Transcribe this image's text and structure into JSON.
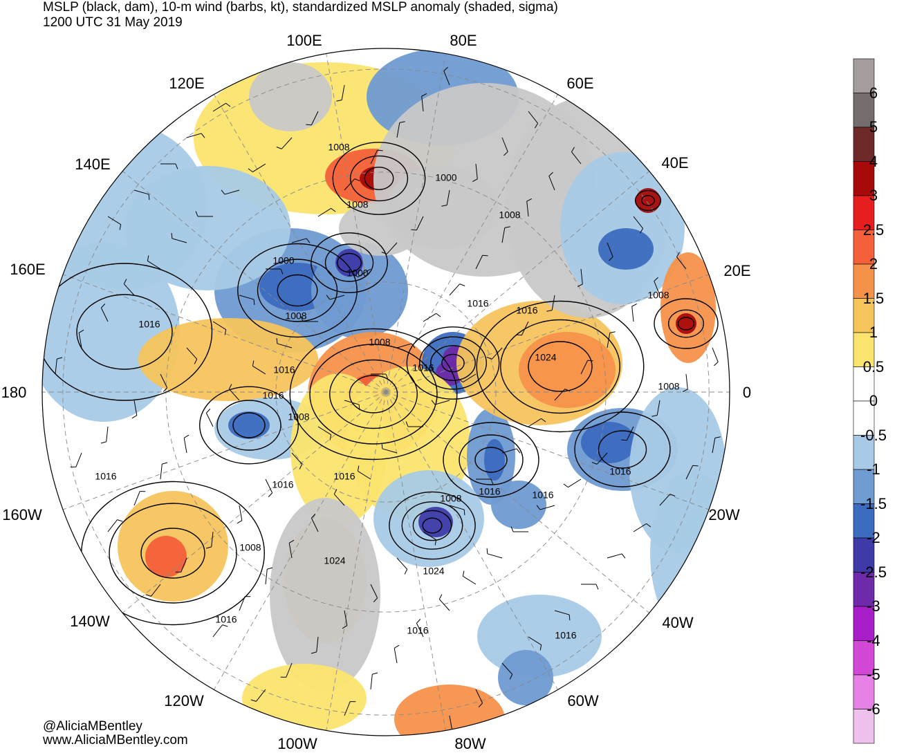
{
  "header": {
    "title": "MSLP (black, dam), 10-m wind (barbs, kt), standardized MSLP anomaly (shaded, sigma)",
    "valid_time": "1200 UTC 31 May 2019"
  },
  "map": {
    "projection": "north-polar-stereographic",
    "longitude_labels": [
      "80E",
      "60E",
      "40E",
      "20E",
      "0",
      "20W",
      "40W",
      "60W",
      "80W",
      "100W",
      "120W",
      "140W",
      "160W",
      "180",
      "160E",
      "140E",
      "120E",
      "100E"
    ],
    "isobar_labels": [
      {
        "text": "1008",
        "region": "central-asia"
      },
      {
        "text": "1000",
        "region": "central-asia"
      },
      {
        "text": "1008",
        "region": "central-asia-south"
      },
      {
        "text": "1008",
        "region": "middle-east"
      },
      {
        "text": "1000",
        "region": "east-asia"
      },
      {
        "text": "1000",
        "region": "siberia"
      },
      {
        "text": "1008",
        "region": "siberia"
      },
      {
        "text": "1008",
        "region": "east-siberia"
      },
      {
        "text": "1016",
        "region": "russia"
      },
      {
        "text": "1016",
        "region": "russia-west"
      },
      {
        "text": "1008",
        "region": "north-africa"
      },
      {
        "text": "1024",
        "region": "scandinavia"
      },
      {
        "text": "1008",
        "region": "north-atlantic-east"
      },
      {
        "text": "1016",
        "region": "north-atlantic"
      },
      {
        "text": "1016",
        "region": "pacific-west"
      },
      {
        "text": "1016",
        "region": "bering"
      },
      {
        "text": "1016",
        "region": "arctic"
      },
      {
        "text": "1008",
        "region": "alaska"
      },
      {
        "text": "1016",
        "region": "arctic-west"
      },
      {
        "text": "1016",
        "region": "greenland-south"
      },
      {
        "text": "1008",
        "region": "labrador"
      },
      {
        "text": "1016",
        "region": "atlantic"
      },
      {
        "text": "1016",
        "region": "pacific-north"
      },
      {
        "text": "1016",
        "region": "alaska-south"
      },
      {
        "text": "1024",
        "region": "canada-west"
      },
      {
        "text": "1008",
        "region": "great-lakes"
      },
      {
        "text": "1024",
        "region": "pacific-east"
      },
      {
        "text": "1016",
        "region": "rockies"
      },
      {
        "text": "1016",
        "region": "pacific-southeast"
      },
      {
        "text": "1016",
        "region": "caribbean"
      },
      {
        "text": "1016",
        "region": "atlantic-west"
      }
    ]
  },
  "colorbar": {
    "tick_labels": [
      "6",
      "5",
      "4",
      "3",
      "2.5",
      "2",
      "1.5",
      "1",
      "0.5",
      "0",
      "-0.5",
      "-1",
      "-1.5",
      "-2",
      "-2.5",
      "-3",
      "-4",
      "-5",
      "-6"
    ],
    "colors": [
      "#a59c9c",
      "#756c6c",
      "#6e2a28",
      "#a80a0a",
      "#e61e1e",
      "#f4603a",
      "#f5924a",
      "#f5c45c",
      "#fbe46e",
      "#ffffff",
      "#ffffff",
      "#a8cae6",
      "#6f9bd2",
      "#3c6cbf",
      "#3e3aa8",
      "#6e2aa8",
      "#a81ec8",
      "#d448d8",
      "#e682e6",
      "#eec0ec"
    ]
  },
  "credits": {
    "handle": "@AliciaMBentley",
    "website": "www.AliciaMBentley.com"
  }
}
